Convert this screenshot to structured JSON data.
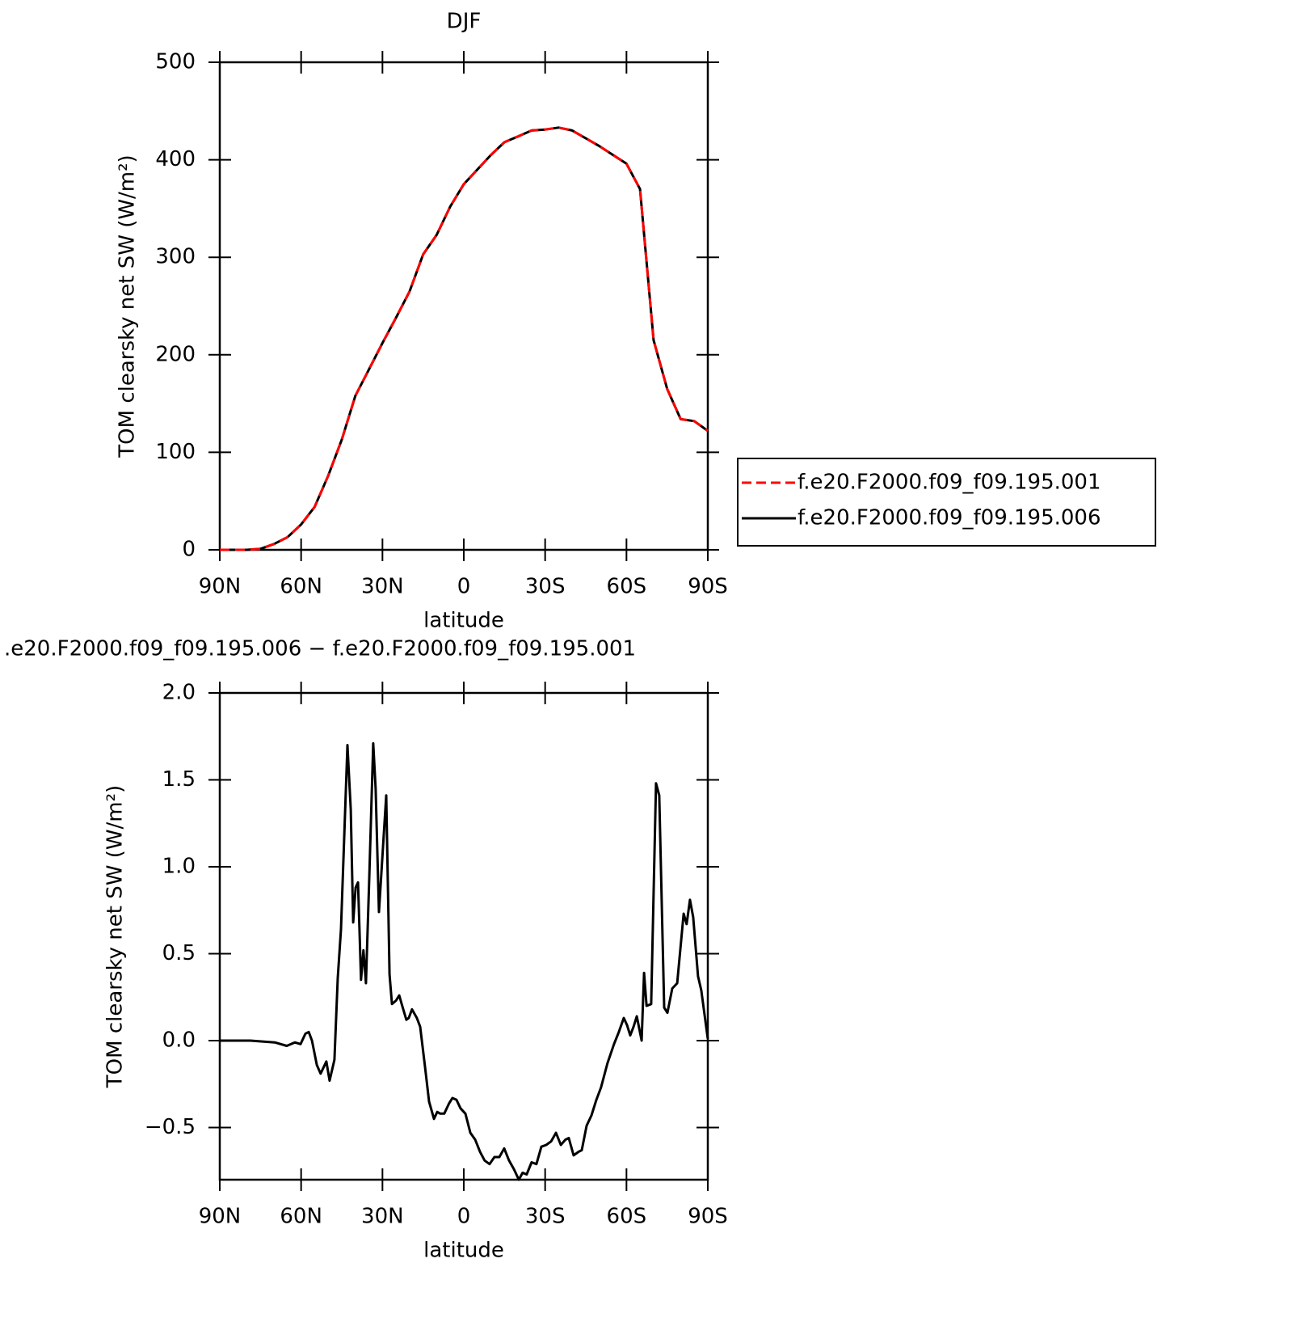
{
  "chart_data": [
    {
      "type": "line",
      "title": "DJF",
      "xlabel": "latitude",
      "ylabel": "TOM clearsky net SW (W/m²)",
      "x": [
        90,
        85,
        80,
        75,
        70,
        65,
        60,
        55,
        50,
        45,
        40,
        35,
        30,
        25,
        20,
        15,
        10,
        5,
        0,
        -5,
        -10,
        -15,
        -20,
        -25,
        -30,
        -35,
        -40,
        -45,
        -50,
        -55,
        -60,
        -65,
        -70,
        -75,
        -80,
        -85,
        -90
      ],
      "series": [
        {
          "name": "f.e20.F2000.f09_f09.195.001",
          "color": "#ff0000",
          "line_style": "dashed",
          "values": [
            0,
            0,
            0,
            1,
            6,
            13,
            26,
            44,
            76,
            113,
            158,
            185,
            212,
            238,
            265,
            303,
            323,
            352,
            375,
            390,
            405,
            418,
            424,
            430,
            431,
            433,
            430,
            422,
            414,
            405,
            396,
            370,
            215,
            165,
            134,
            132,
            122
          ]
        },
        {
          "name": "f.e20.F2000.f09_f09.195.006",
          "color": "#000000",
          "line_style": "solid",
          "values": [
            0,
            0,
            0,
            1,
            6,
            13,
            26,
            44,
            76,
            113,
            158,
            185,
            212,
            238,
            265,
            303,
            323,
            352,
            375,
            390,
            405,
            418,
            424,
            430,
            431,
            433,
            430,
            422,
            414,
            405,
            396,
            370,
            215,
            165,
            134,
            132,
            122
          ]
        }
      ],
      "xlim": [
        90,
        -90
      ],
      "xticks": [
        {
          "value": 90,
          "label": "90N"
        },
        {
          "value": 60,
          "label": "60N"
        },
        {
          "value": 30,
          "label": "30N"
        },
        0,
        {
          "value": -30,
          "label": "30S"
        },
        {
          "value": -60,
          "label": "60S"
        },
        {
          "value": -90,
          "label": "90S"
        }
      ],
      "ylim": [
        0,
        500
      ],
      "yticks": [
        0,
        100,
        200,
        300,
        400,
        500
      ],
      "legend": "right"
    },
    {
      "type": "line",
      "title": ".e20.F2000.f09_f09.195.006 − f.e20.F2000.f09_f09.195.001",
      "xlabel": "latitude",
      "ylabel": "TOM clearsky net SW (W/m²)",
      "x": [
        90,
        78.7,
        69.7,
        65.3,
        62.3,
        60.2,
        58.4,
        57.2,
        56.0,
        54.2,
        52.8,
        50.7,
        49.5,
        47.7,
        46.5,
        45.3,
        42.9,
        41.7,
        40.8,
        39.9,
        39.0,
        37.9,
        37.0,
        36.1,
        34.9,
        33.4,
        32.5,
        31.3,
        28.6,
        27.4,
        26.5,
        25.0,
        23.8,
        22.7,
        21.2,
        20.3,
        19.1,
        17.3,
        16.1,
        14.3,
        12.8,
        11.0,
        9.8,
        8.7,
        7.2,
        5.4,
        4.2,
        2.7,
        1.2,
        -0.6,
        -2.4,
        -4.2,
        -6.0,
        -7.7,
        -9.5,
        -11.3,
        -13.1,
        -14.9,
        -16.7,
        -18.5,
        -20.3,
        -21.7,
        -23.2,
        -25.0,
        -26.8,
        -28.6,
        -30.4,
        -32.2,
        -34.0,
        -35.8,
        -37.5,
        -38.7,
        -40.5,
        -42.3,
        -43.5,
        -45.3,
        -47.1,
        -48.9,
        -50.6,
        -53.0,
        -55.4,
        -57.2,
        -59.0,
        -60.2,
        -61.4,
        -62.6,
        -63.8,
        -65.6,
        -66.5,
        -67.4,
        -69.1,
        -70.9,
        -72.1,
        -73.9,
        -75.1,
        -76.9,
        -78.7,
        -81.1,
        -82.2,
        -83.4,
        -84.6,
        -86.4,
        -87.6,
        -90.0
      ],
      "values": [
        0,
        0,
        -0.01,
        -0.03,
        -0.01,
        -0.02,
        0.04,
        0.05,
        0.0,
        -0.14,
        -0.19,
        -0.12,
        -0.23,
        -0.11,
        0.36,
        0.64,
        1.7,
        1.33,
        0.68,
        0.88,
        0.91,
        0.35,
        0.52,
        0.33,
        0.92,
        1.71,
        1.45,
        0.74,
        1.41,
        0.38,
        0.21,
        0.23,
        0.26,
        0.2,
        0.12,
        0.13,
        0.18,
        0.13,
        0.08,
        -0.15,
        -0.35,
        -0.45,
        -0.41,
        -0.42,
        -0.42,
        -0.36,
        -0.33,
        -0.34,
        -0.39,
        -0.42,
        -0.53,
        -0.57,
        -0.64,
        -0.69,
        -0.71,
        -0.67,
        -0.67,
        -0.62,
        -0.69,
        -0.74,
        -0.8,
        -0.76,
        -0.77,
        -0.7,
        -0.71,
        -0.61,
        -0.6,
        -0.58,
        -0.53,
        -0.6,
        -0.57,
        -0.56,
        -0.66,
        -0.64,
        -0.63,
        -0.49,
        -0.43,
        -0.34,
        -0.27,
        -0.13,
        -0.02,
        0.05,
        0.13,
        0.09,
        0.03,
        0.08,
        0.14,
        0.0,
        0.39,
        0.2,
        0.21,
        1.48,
        1.41,
        0.19,
        0.16,
        0.3,
        0.33,
        0.73,
        0.67,
        0.81,
        0.71,
        0.37,
        0.29,
        0.01
      ],
      "color": "#000000",
      "xlim": [
        90,
        -90
      ],
      "xticks": [
        {
          "value": 90,
          "label": "90N"
        },
        {
          "value": 60,
          "label": "60N"
        },
        {
          "value": 30,
          "label": "30N"
        },
        0,
        {
          "value": -30,
          "label": "30S"
        },
        {
          "value": -60,
          "label": "60S"
        },
        {
          "value": -90,
          "label": "90S"
        }
      ],
      "ylim": [
        -0.8,
        2.0
      ],
      "yticks": [
        {
          "value": -0.5,
          "label": "−0.5"
        },
        {
          "value": 0,
          "label": "0.0"
        },
        {
          "value": 0.5,
          "label": "0.5"
        },
        {
          "value": 1,
          "label": "1.0"
        },
        {
          "value": 1.5,
          "label": "1.5"
        },
        {
          "value": 2,
          "label": "2.0"
        }
      ]
    }
  ]
}
